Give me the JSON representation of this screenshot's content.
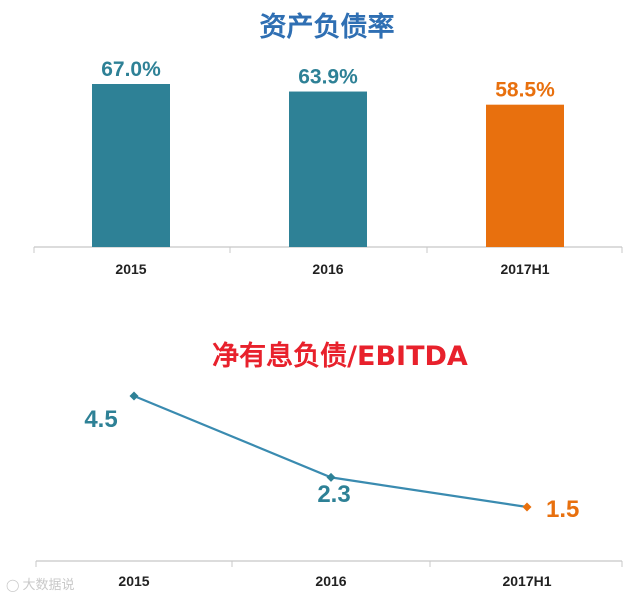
{
  "chart_data": [
    {
      "type": "bar",
      "title": "资产负债率",
      "categories": [
        "2015",
        "2016",
        "2017H1"
      ],
      "values": [
        67.0,
        63.9,
        58.5
      ],
      "value_labels": [
        "67.0%",
        "63.9%",
        "58.5%"
      ],
      "colors": [
        "#2e8196",
        "#2e8196",
        "#e8700e"
      ],
      "label_colors": [
        "#2e8196",
        "#2e8196",
        "#e8700e"
      ],
      "title_color": "#2f6fb3",
      "ylim": [
        0,
        67.0
      ],
      "xlabel": "",
      "ylabel": "",
      "grid": false
    },
    {
      "type": "line",
      "title": "净有息负债/EBITDA",
      "categories": [
        "2015",
        "2016",
        "2017H1"
      ],
      "values": [
        4.5,
        2.3,
        1.5
      ],
      "value_labels": [
        "4.5",
        "2.3",
        "1.5"
      ],
      "line_color": "#3a8bb0",
      "label_colors": [
        "#2e8196",
        "#2e8196",
        "#e8700e"
      ],
      "marker_colors": [
        "#2e8196",
        "#2e8196",
        "#e8700e"
      ],
      "title_color": "#e8212c",
      "ylim": [
        0,
        6
      ],
      "xlabel": "",
      "ylabel": "",
      "grid": false
    }
  ],
  "watermark": {
    "icon": "weibo-icon",
    "text": "大数据说"
  }
}
